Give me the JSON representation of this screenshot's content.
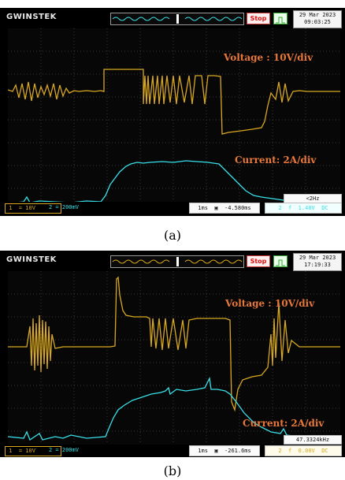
{
  "panels": [
    {
      "brand": "GWINSTEK",
      "run_state": "Stop",
      "date": "29 Mar 2023",
      "time": "09:03:25",
      "voltage_label": "Voltage : 10V/div",
      "current_label": "Current:  2A/div",
      "ch1_scale": "10V",
      "ch2_scale": "200mV",
      "timebase": "1ms",
      "position": "-4.580ms",
      "trigger_channel": "2",
      "trigger_level": "1.40V",
      "trigger_coupling": "DC",
      "frequency": "<2Hz",
      "caption": "(a)",
      "colors": {
        "ch1": "#d9a820",
        "ch2": "#38e0e8",
        "stop": "#dd2222"
      }
    },
    {
      "brand": "GWINSTEK",
      "run_state": "Stop",
      "date": "29 Mar 2023",
      "time": "17:19:33",
      "voltage_label": "Voltage : 10V/div",
      "current_label": "Current:  2A/div",
      "ch1_scale": "10V",
      "ch2_scale": "200mV",
      "timebase": "1ms",
      "position": "-261.6ms",
      "trigger_channel": "2",
      "trigger_level": "0.00V",
      "trigger_coupling": "DC",
      "frequency": "47.3324kHz",
      "caption": "(b)",
      "colors": {
        "ch1": "#d9a820",
        "ch2": "#38e0e8",
        "stop": "#dd2222"
      }
    }
  ]
}
